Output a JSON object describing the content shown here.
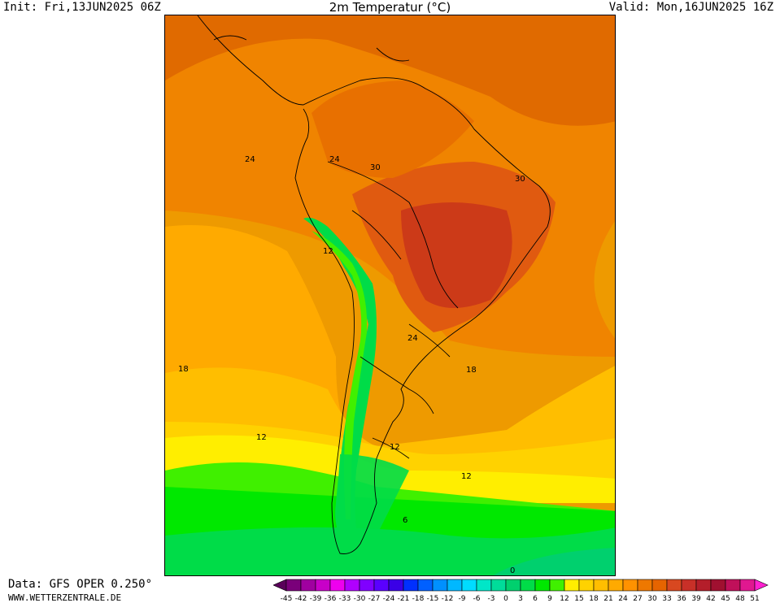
{
  "header": {
    "init": "Init: Fri,13JUN2025 06Z",
    "title": "2m Temperatur (°C)",
    "valid": "Valid: Mon,16JUN2025 16Z"
  },
  "map": {
    "region": "South America",
    "contour_labels": [
      {
        "id": "l24a",
        "text": "24"
      },
      {
        "id": "l24b",
        "text": "24"
      },
      {
        "id": "l30a",
        "text": "30"
      },
      {
        "id": "l30b",
        "text": "30"
      },
      {
        "id": "l12a",
        "text": "12"
      },
      {
        "id": "l24c",
        "text": "24"
      },
      {
        "id": "l18a",
        "text": "18"
      },
      {
        "id": "l18b",
        "text": "18"
      },
      {
        "id": "l12b",
        "text": "12"
      },
      {
        "id": "l12c",
        "text": "12"
      },
      {
        "id": "l12d",
        "text": "12"
      },
      {
        "id": "l6a",
        "text": "6"
      },
      {
        "id": "l0a",
        "text": "0"
      }
    ]
  },
  "footer": {
    "data_source": "Data: GFS OPER 0.250°",
    "website": "WWW.WETTERZENTRALE.DE"
  },
  "legend": {
    "ticks": [
      "-45",
      "-42",
      "-39",
      "-36",
      "-33",
      "-30",
      "-27",
      "-24",
      "-21",
      "-18",
      "-15",
      "-12",
      "-9",
      "-6",
      "-3",
      "0",
      "3",
      "6",
      "9",
      "12",
      "15",
      "18",
      "21",
      "24",
      "27",
      "30",
      "33",
      "36",
      "39",
      "42",
      "45",
      "48",
      "51"
    ],
    "colors": [
      "#5a005a",
      "#7a007a",
      "#a000a0",
      "#c800c8",
      "#ee00ee",
      "#b000ff",
      "#8000ff",
      "#5a00ff",
      "#3a00e6",
      "#0030ff",
      "#0060ff",
      "#0090ff",
      "#00b8ff",
      "#00dcff",
      "#00e6c8",
      "#00dc9a",
      "#00d06e",
      "#00dc48",
      "#00e800",
      "#40f000",
      "#ffee00",
      "#ffd200",
      "#ffbe00",
      "#ffaa00",
      "#ff9200",
      "#ee7800",
      "#e66400",
      "#d84820",
      "#c83028",
      "#b41e2a",
      "#a01030",
      "#c0105a",
      "#e01890",
      "#ff20d0"
    ]
  }
}
